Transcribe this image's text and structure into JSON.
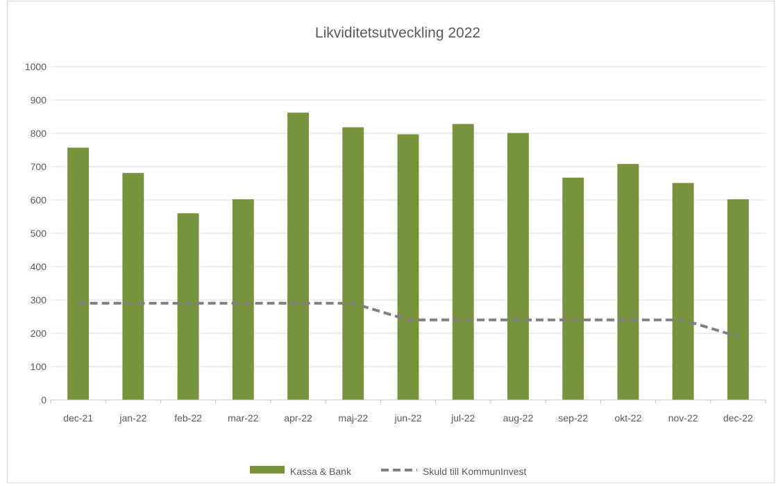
{
  "chart_data": {
    "type": "bar",
    "title": "Likviditetsutveckling 2022",
    "xlabel": "",
    "ylabel": "",
    "ylim": [
      0,
      1000
    ],
    "yticks": [
      0,
      100,
      200,
      300,
      400,
      500,
      600,
      700,
      800,
      900,
      1000
    ],
    "categories": [
      "dec-21",
      "jan-22",
      "feb-22",
      "mar-22",
      "apr-22",
      "maj-22",
      "jun-22",
      "jul-22",
      "aug-22",
      "sep-22",
      "okt-22",
      "nov-22",
      "dec-22"
    ],
    "series": [
      {
        "name": "Kassa & Bank",
        "type": "bar",
        "color": "#77933c",
        "values": [
          757,
          681,
          560,
          602,
          862,
          818,
          797,
          828,
          801,
          667,
          708,
          651,
          602
        ]
      },
      {
        "name": "Skuld till KommunInvest",
        "type": "line",
        "style": "dashed",
        "color": "#808080",
        "values": [
          290,
          290,
          290,
          290,
          290,
          290,
          240,
          240,
          240,
          240,
          240,
          240,
          190
        ]
      }
    ],
    "grid": true,
    "legend": "bottom"
  }
}
